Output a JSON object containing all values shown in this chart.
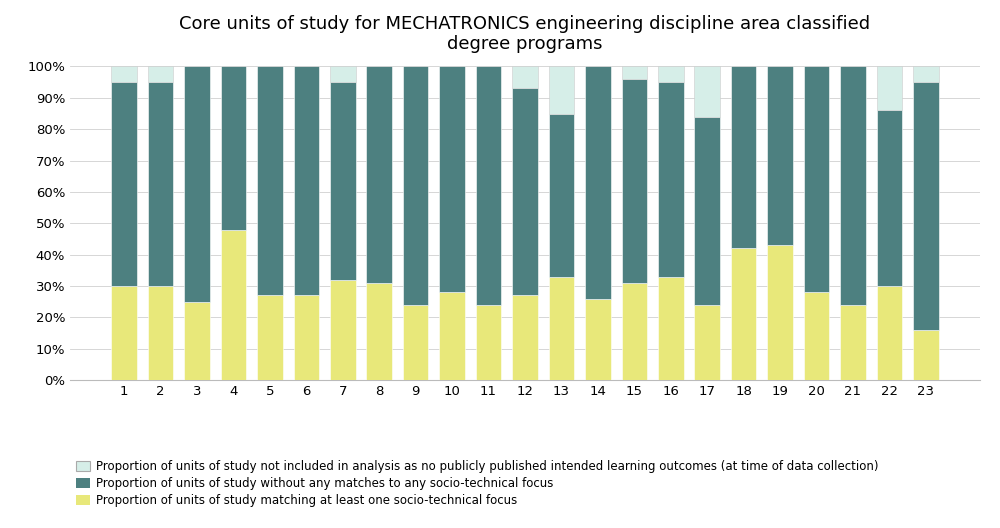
{
  "title": "Core units of study for MECHATRONICS engineering discipline area classified\ndegree programs",
  "categories": [
    1,
    2,
    3,
    4,
    5,
    6,
    7,
    8,
    9,
    10,
    11,
    12,
    13,
    14,
    15,
    16,
    17,
    18,
    19,
    20,
    21,
    22,
    23
  ],
  "yellow": [
    30,
    30,
    25,
    48,
    27,
    27,
    32,
    31,
    24,
    28,
    24,
    27,
    33,
    26,
    31,
    33,
    24,
    42,
    43,
    28,
    24,
    30,
    16
  ],
  "green": [
    65,
    65,
    75,
    52,
    73,
    73,
    63,
    69,
    76,
    72,
    76,
    66,
    52,
    74,
    65,
    62,
    60,
    58,
    57,
    72,
    76,
    56,
    79
  ],
  "white": [
    5,
    5,
    0,
    0,
    0,
    0,
    5,
    0,
    0,
    0,
    0,
    7,
    15,
    0,
    4,
    5,
    16,
    0,
    0,
    0,
    0,
    14,
    5
  ],
  "yellow_color": "#e8e87a",
  "green_color": "#4d8080",
  "white_color": "#d6eee8",
  "legend_not_included": "Proportion of units of study not included in analysis as no publicly published intended learning outcomes (at time of data collection)",
  "legend_without": "Proportion of units of study without any matches to any socio-technical focus",
  "legend_matching": "Proportion of units of study matching at least one socio-technical focus",
  "ylabel_ticks": [
    "0%",
    "10%",
    "20%",
    "30%",
    "40%",
    "50%",
    "60%",
    "70%",
    "80%",
    "90%",
    "100%"
  ],
  "ylim": [
    0,
    100
  ],
  "background_color": "#ffffff",
  "title_fontsize": 13,
  "legend_fontsize": 8.5,
  "tick_fontsize": 9.5
}
